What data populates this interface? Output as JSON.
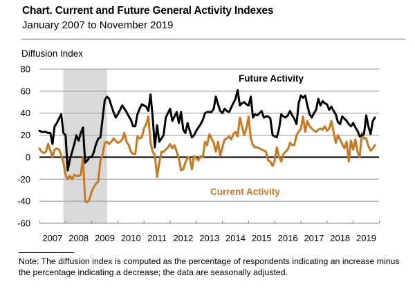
{
  "header": {
    "title": "Chart. Current and Future General Activity Indexes",
    "subtitle": "January 2007 to November 2019"
  },
  "note": "Note: The diffusion index is computed as the percentage of respondents indicating an increase minus the percentage indicating a decrease; the data are seasonally adjusted.",
  "colors": {
    "future": "#000000",
    "current": "#c8781e",
    "recession_shade": "#d9d9d9",
    "gridline": "#a6a6a6",
    "zero_line": "#000000"
  },
  "chart_data": {
    "type": "line",
    "title": "Chart. Current and Future General Activity Indexes",
    "subtitle": "January 2007 to November 2019",
    "ylabel": "Diffusion Index",
    "xlabel": "",
    "ylim": [
      -60,
      80
    ],
    "yticks": [
      80,
      60,
      40,
      20,
      0,
      -20,
      -40,
      -60
    ],
    "xticks": [
      "2007",
      "2008",
      "2009",
      "2010",
      "2011",
      "2012",
      "2013",
      "2014",
      "2015",
      "2016",
      "2017",
      "2018",
      "2019"
    ],
    "x_start": "January 2007",
    "x_end": "November 2019",
    "frequency": "monthly",
    "grid": true,
    "legend": "inline labels",
    "recession": {
      "start_month_index": 11,
      "end_month_index": 31,
      "label": "shaded recession period"
    },
    "series": [
      {
        "name": "Future Activity",
        "label_position": "upper-center",
        "values": [
          24,
          23,
          23,
          23,
          22,
          22,
          12,
          28,
          31,
          35,
          39,
          22,
          20,
          -12,
          -2,
          5,
          12,
          20,
          15,
          22,
          27,
          -5,
          -3,
          0,
          0,
          5,
          12,
          17,
          18,
          35,
          52,
          55,
          53,
          47,
          41,
          36,
          39,
          43,
          47,
          44,
          41,
          37,
          34,
          28,
          28,
          39,
          44,
          48,
          47,
          46,
          42,
          57,
          36,
          9,
          29,
          14,
          17,
          20,
          36,
          40,
          44,
          33,
          37,
          41,
          31,
          41,
          25,
          22,
          31,
          24,
          18,
          20,
          24,
          27,
          30,
          34,
          40,
          41,
          41,
          41,
          44,
          55,
          48,
          42,
          40,
          44,
          42,
          41,
          45,
          49,
          53,
          61,
          47,
          49,
          50,
          48,
          47,
          55,
          36,
          39,
          38,
          40,
          42,
          36,
          37,
          37,
          35,
          20,
          19,
          18,
          26,
          39,
          37,
          36,
          38,
          42,
          38,
          35,
          30,
          49,
          56,
          54,
          56,
          47,
          39,
          36,
          40,
          43,
          53,
          47,
          51,
          49,
          48,
          43,
          46,
          42,
          39,
          32,
          30,
          37,
          35,
          33,
          30,
          28,
          31,
          27,
          24,
          19,
          20,
          21,
          38,
          28,
          21,
          33,
          36
        ]
      },
      {
        "name": "Current Activity",
        "label_position": "lower-center",
        "values": [
          8,
          5,
          4,
          5,
          12,
          6,
          0,
          7,
          8,
          7,
          2,
          -5,
          -16,
          -20,
          -17,
          -20,
          -16,
          -17,
          -17,
          -16,
          0,
          -40,
          -41,
          -38,
          -31,
          -27,
          -24,
          -22,
          -3,
          2,
          13,
          14,
          12,
          14,
          17,
          15,
          13,
          14,
          16,
          22,
          14,
          11,
          5,
          3,
          3,
          19,
          17,
          18,
          26,
          30,
          37,
          13,
          5,
          2,
          -18,
          -5,
          5,
          5,
          7,
          9,
          12,
          8,
          11,
          5,
          -1,
          -12,
          -11,
          -5,
          0,
          -1,
          -11,
          1,
          -1,
          -3,
          1,
          0,
          14,
          11,
          21,
          17,
          13,
          5,
          14,
          1,
          9,
          16,
          17,
          19,
          16,
          21,
          23,
          19,
          36,
          28,
          20,
          26,
          37,
          17,
          11,
          9,
          9,
          8,
          7,
          6,
          5,
          -3,
          -4,
          -8,
          -3,
          9,
          0,
          -4,
          3,
          5,
          7,
          13,
          11,
          11,
          20,
          23,
          26,
          37,
          23,
          33,
          28,
          26,
          24,
          23,
          25,
          26,
          25,
          28,
          24,
          26,
          33,
          23,
          13,
          20,
          16,
          12,
          8,
          14,
          -4,
          15,
          7,
          16,
          5,
          0,
          22,
          17,
          17,
          10,
          6,
          8,
          11
        ]
      }
    ]
  }
}
